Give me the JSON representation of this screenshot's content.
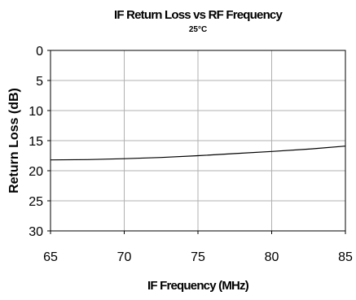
{
  "chart_data": {
    "type": "line",
    "title": "IF Return Loss vs RF Frequency",
    "subtitle": "25°C",
    "xlabel": "IF Frequency (MHz)",
    "ylabel": "Return Loss (dB)",
    "xlim": [
      65,
      85
    ],
    "ylim": [
      0,
      30
    ],
    "y_inverted": true,
    "x_ticks": [
      65,
      70,
      75,
      80,
      85
    ],
    "y_ticks": [
      0,
      5,
      10,
      15,
      20,
      25,
      30
    ],
    "grid": true,
    "legend": "none",
    "series": [
      {
        "x": [
          65,
          67.5,
          70,
          72.5,
          75,
          77.5,
          80,
          82.5,
          85
        ],
        "y": [
          18.2,
          18.15,
          18.0,
          17.8,
          17.5,
          17.15,
          16.8,
          16.4,
          15.9
        ]
      }
    ],
    "line_color": "#000000",
    "grid_color": "#b0b0b0"
  }
}
